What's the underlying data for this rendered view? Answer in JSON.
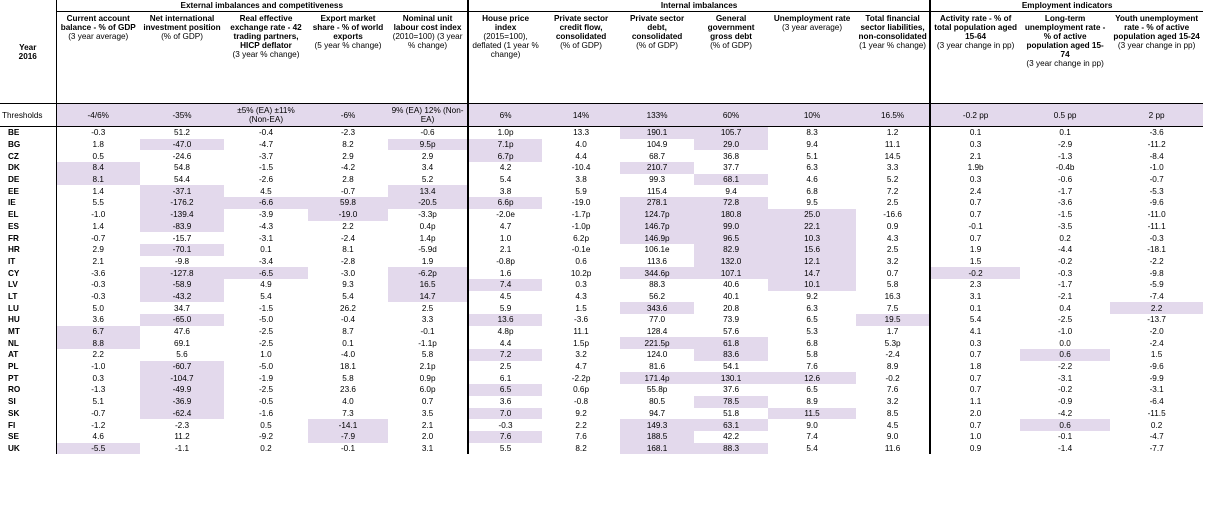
{
  "header": {
    "year_label_1": "Year",
    "year_label_2": "2016",
    "groups": [
      {
        "title": "External imbalances and competitiveness"
      },
      {
        "title": "Internal imbalances"
      },
      {
        "title": "Employment indicators"
      }
    ],
    "columns": [
      {
        "title": "Current account balance - % of GDP",
        "sub": "(3 year average)"
      },
      {
        "title": "Net international investment position",
        "sub": "(% of GDP)"
      },
      {
        "title": "Real effective exchange rate - 42 trading partners, HICP deflator",
        "sub": "(3 year % change)"
      },
      {
        "title": "Export market share - % of world exports",
        "sub": "(5 year % change)"
      },
      {
        "title": "Nominal unit labour cost index",
        "sub": "(2010=100) (3 year % change)"
      },
      {
        "title": "House price index",
        "sub": "(2015=100), deflated (1 year % change)"
      },
      {
        "title": "Private sector credit flow, consolidated",
        "sub": "(% of GDP)"
      },
      {
        "title": "Private sector debt, consolidated",
        "sub": "(% of GDP)"
      },
      {
        "title": "General government gross debt",
        "sub": "(% of GDP)"
      },
      {
        "title": "Unemployment rate",
        "sub": "(3 year average)"
      },
      {
        "title": "Total financial sector liabilities, non-consolidated",
        "sub": "(1 year % change)"
      },
      {
        "title": "Activity rate - % of total population aged 15-64",
        "sub": "(3 year change in pp)"
      },
      {
        "title": "Long-term unemployment rate - % of active population aged 15-74",
        "sub": "(3 year change in pp)"
      },
      {
        "title": "Youth unemployment rate - % of active population aged 15-24",
        "sub": "(3 year change in pp)"
      }
    ]
  },
  "thresholds": {
    "label": "Thresholds",
    "values": [
      "-4/6%",
      "-35%",
      "±5% (EA) ±11% (Non-EA)",
      "-6%",
      "9% (EA) 12% (Non-EA)",
      "6%",
      "14%",
      "133%",
      "60%",
      "10%",
      "16.5%",
      "-0.2 pp",
      "0.5 pp",
      "2 pp"
    ]
  },
  "rows": [
    {
      "country": "BE",
      "values": [
        "-0.3",
        "51.2",
        "-0.4",
        "-2.3",
        "-0.6",
        "1.0p",
        "13.3",
        "190.1",
        "105.7",
        "8.3",
        "1.2",
        "0.1",
        "0.1",
        "-3.6"
      ]
    },
    {
      "country": "BG",
      "values": [
        "1.8",
        "-47.0",
        "-4.7",
        "8.2",
        "9.5p",
        "7.1p",
        "4.0",
        "104.9",
        "29.0",
        "9.4",
        "11.1",
        "0.3",
        "-2.9",
        "-11.2"
      ]
    },
    {
      "country": "CZ",
      "values": [
        "0.5",
        "-24.6",
        "-3.7",
        "2.9",
        "2.9",
        "6.7p",
        "4.4",
        "68.7",
        "36.8",
        "5.1",
        "14.5",
        "2.1",
        "-1.3",
        "-8.4"
      ]
    },
    {
      "country": "DK",
      "values": [
        "8.4",
        "54.8",
        "-1.5",
        "-4.2",
        "3.4",
        "4.2",
        "-10.4",
        "210.7",
        "37.7",
        "6.3",
        "3.3",
        "1.9b",
        "-0.4b",
        "-1.0"
      ]
    },
    {
      "country": "DE",
      "values": [
        "8.1",
        "54.4",
        "-2.6",
        "2.8",
        "5.2",
        "5.4",
        "3.8",
        "99.3",
        "68.1",
        "4.6",
        "5.2",
        "0.3",
        "-0.6",
        "-0.7"
      ]
    },
    {
      "country": "EE",
      "values": [
        "1.4",
        "-37.1",
        "4.5",
        "-0.7",
        "13.4",
        "3.8",
        "5.9",
        "115.4",
        "9.4",
        "6.8",
        "7.2",
        "2.4",
        "-1.7",
        "-5.3"
      ]
    },
    {
      "country": "IE",
      "values": [
        "5.5",
        "-176.2",
        "-6.6",
        "59.8",
        "-20.5",
        "6.6p",
        "-19.0",
        "278.1",
        "72.8",
        "9.5",
        "2.5",
        "0.7",
        "-3.6",
        "-9.6"
      ]
    },
    {
      "country": "EL",
      "values": [
        "-1.0",
        "-139.4",
        "-3.9",
        "-19.0",
        "-3.3p",
        "-2.0e",
        "-1.7p",
        "124.7p",
        "180.8",
        "25.0",
        "-16.6",
        "0.7",
        "-1.5",
        "-11.0"
      ]
    },
    {
      "country": "ES",
      "values": [
        "1.4",
        "-83.9",
        "-4.3",
        "2.2",
        "0.4p",
        "4.7",
        "-1.0p",
        "146.7p",
        "99.0",
        "22.1",
        "0.9",
        "-0.1",
        "-3.5",
        "-11.1"
      ]
    },
    {
      "country": "FR",
      "values": [
        "-0.7",
        "-15.7",
        "-3.1",
        "-2.4",
        "1.4p",
        "1.0",
        "6.2p",
        "146.9p",
        "96.5",
        "10.3",
        "4.3",
        "0.7",
        "0.2",
        "-0.3"
      ]
    },
    {
      "country": "HR",
      "values": [
        "2.9",
        "-70.1",
        "0.1",
        "8.1",
        "-5.9d",
        "2.1",
        "-0.1e",
        "106.1e",
        "82.9",
        "15.6",
        "2.5",
        "1.9",
        "-4.4",
        "-18.1"
      ]
    },
    {
      "country": "IT",
      "values": [
        "2.1",
        "-9.8",
        "-3.4",
        "-2.8",
        "1.9",
        "-0.8p",
        "0.6",
        "113.6",
        "132.0",
        "12.1",
        "3.2",
        "1.5",
        "-0.2",
        "-2.2"
      ]
    },
    {
      "country": "CY",
      "values": [
        "-3.6",
        "-127.8",
        "-6.5",
        "-3.0",
        "-6.2p",
        "1.6",
        "10.2p",
        "344.6p",
        "107.1",
        "14.7",
        "0.7",
        "-0.2",
        "-0.3",
        "-9.8"
      ]
    },
    {
      "country": "LV",
      "values": [
        "-0.3",
        "-58.9",
        "4.9",
        "9.3",
        "16.5",
        "7.4",
        "0.3",
        "88.3",
        "40.6",
        "10.1",
        "5.8",
        "2.3",
        "-1.7",
        "-5.9"
      ]
    },
    {
      "country": "LT",
      "values": [
        "-0.3",
        "-43.2",
        "5.4",
        "5.4",
        "14.7",
        "4.5",
        "4.3",
        "56.2",
        "40.1",
        "9.2",
        "16.3",
        "3.1",
        "-2.1",
        "-7.4"
      ]
    },
    {
      "country": "LU",
      "values": [
        "5.0",
        "34.7",
        "-1.5",
        "26.2",
        "2.5",
        "5.9",
        "1.5",
        "343.6",
        "20.8",
        "6.3",
        "7.5",
        "0.1",
        "0.4",
        "2.2"
      ]
    },
    {
      "country": "HU",
      "values": [
        "3.6",
        "-65.0",
        "-5.0",
        "-0.4",
        "3.3",
        "13.6",
        "-3.6",
        "77.0",
        "73.9",
        "6.5",
        "19.5",
        "5.4",
        "-2.5",
        "-13.7"
      ]
    },
    {
      "country": "MT",
      "values": [
        "6.7",
        "47.6",
        "-2.5",
        "8.7",
        "-0.1",
        "4.8p",
        "11.1",
        "128.4",
        "57.6",
        "5.3",
        "1.7",
        "4.1",
        "-1.0",
        "-2.0"
      ]
    },
    {
      "country": "NL",
      "values": [
        "8.8",
        "69.1",
        "-2.5",
        "0.1",
        "-1.1p",
        "4.4",
        "1.5p",
        "221.5p",
        "61.8",
        "6.8",
        "5.3p",
        "0.3",
        "0.0",
        "-2.4"
      ]
    },
    {
      "country": "AT",
      "values": [
        "2.2",
        "5.6",
        "1.0",
        "-4.0",
        "5.8",
        "7.2",
        "3.2",
        "124.0",
        "83.6",
        "5.8",
        "-2.4",
        "0.7",
        "0.6",
        "1.5"
      ]
    },
    {
      "country": "PL",
      "values": [
        "-1.0",
        "-60.7",
        "-5.0",
        "18.1",
        "2.1p",
        "2.5",
        "4.7",
        "81.6",
        "54.1",
        "7.6",
        "8.9",
        "1.8",
        "-2.2",
        "-9.6"
      ]
    },
    {
      "country": "PT",
      "values": [
        "0.3",
        "-104.7",
        "-1.9",
        "5.8",
        "0.9p",
        "6.1",
        "-2.2p",
        "171.4p",
        "130.1",
        "12.6",
        "-0.2",
        "0.7",
        "-3.1",
        "-9.9"
      ]
    },
    {
      "country": "RO",
      "values": [
        "-1.3",
        "-49.9",
        "-2.5",
        "23.6",
        "6.0p",
        "6.5",
        "0.6p",
        "55.8p",
        "37.6",
        "6.5",
        "7.6",
        "0.7",
        "-0.2",
        "-3.1"
      ]
    },
    {
      "country": "SI",
      "values": [
        "5.1",
        "-36.9",
        "-0.5",
        "4.0",
        "0.7",
        "3.6",
        "-0.8",
        "80.5",
        "78.5",
        "8.9",
        "3.2",
        "1.1",
        "-0.9",
        "-6.4"
      ]
    },
    {
      "country": "SK",
      "values": [
        "-0.7",
        "-62.4",
        "-1.6",
        "7.3",
        "3.5",
        "7.0",
        "9.2",
        "94.7",
        "51.8",
        "11.5",
        "8.5",
        "2.0",
        "-4.2",
        "-11.5"
      ]
    },
    {
      "country": "FI",
      "values": [
        "-1.2",
        "-2.3",
        "0.5",
        "-14.1",
        "2.1",
        "-0.3",
        "2.2",
        "149.3",
        "63.1",
        "9.0",
        "4.5",
        "0.7",
        "0.6",
        "0.2"
      ]
    },
    {
      "country": "SE",
      "values": [
        "4.6",
        "11.2",
        "-9.2",
        "-7.9",
        "2.0",
        "7.6",
        "7.6",
        "188.5",
        "42.2",
        "7.4",
        "9.0",
        "1.0",
        "-0.1",
        "-4.7"
      ]
    },
    {
      "country": "UK",
      "values": [
        "-5.5",
        "-1.1",
        "0.2",
        "-0.1",
        "3.1",
        "5.5",
        "8.2",
        "168.1",
        "88.3",
        "5.4",
        "11.6",
        "0.9",
        "-1.4",
        "-7.7"
      ]
    }
  ],
  "highlights": [
    [
      0,
      7
    ],
    [
      0,
      8
    ],
    [
      1,
      1
    ],
    [
      1,
      4
    ],
    [
      1,
      5
    ],
    [
      1,
      8
    ],
    [
      2,
      5
    ],
    [
      3,
      0
    ],
    [
      3,
      7
    ],
    [
      4,
      0
    ],
    [
      4,
      8
    ],
    [
      5,
      1
    ],
    [
      5,
      4
    ],
    [
      6,
      1
    ],
    [
      6,
      2
    ],
    [
      6,
      3
    ],
    [
      6,
      4
    ],
    [
      6,
      5
    ],
    [
      6,
      7
    ],
    [
      6,
      8
    ],
    [
      7,
      1
    ],
    [
      7,
      3
    ],
    [
      7,
      7
    ],
    [
      7,
      8
    ],
    [
      7,
      9
    ],
    [
      8,
      1
    ],
    [
      8,
      7
    ],
    [
      8,
      8
    ],
    [
      8,
      9
    ],
    [
      9,
      7
    ],
    [
      9,
      8
    ],
    [
      9,
      9
    ],
    [
      10,
      1
    ],
    [
      10,
      8
    ],
    [
      10,
      9
    ],
    [
      11,
      8
    ],
    [
      11,
      9
    ],
    [
      12,
      1
    ],
    [
      12,
      2
    ],
    [
      12,
      4
    ],
    [
      12,
      7
    ],
    [
      12,
      8
    ],
    [
      12,
      9
    ],
    [
      12,
      11
    ],
    [
      13,
      1
    ],
    [
      13,
      4
    ],
    [
      13,
      5
    ],
    [
      13,
      9
    ],
    [
      14,
      1
    ],
    [
      14,
      4
    ],
    [
      15,
      7
    ],
    [
      15,
      13
    ],
    [
      16,
      1
    ],
    [
      16,
      5
    ],
    [
      16,
      10
    ],
    [
      17,
      0
    ],
    [
      18,
      0
    ],
    [
      18,
      7
    ],
    [
      18,
      8
    ],
    [
      19,
      5
    ],
    [
      19,
      8
    ],
    [
      19,
      12
    ],
    [
      20,
      1
    ],
    [
      21,
      1
    ],
    [
      21,
      7
    ],
    [
      21,
      8
    ],
    [
      21,
      9
    ],
    [
      22,
      1
    ],
    [
      22,
      5
    ],
    [
      23,
      1
    ],
    [
      23,
      8
    ],
    [
      24,
      1
    ],
    [
      24,
      5
    ],
    [
      24,
      9
    ],
    [
      25,
      3
    ],
    [
      25,
      7
    ],
    [
      25,
      8
    ],
    [
      25,
      12
    ],
    [
      26,
      3
    ],
    [
      26,
      5
    ],
    [
      26,
      7
    ],
    [
      27,
      0
    ],
    [
      27,
      7
    ],
    [
      27,
      8
    ]
  ]
}
